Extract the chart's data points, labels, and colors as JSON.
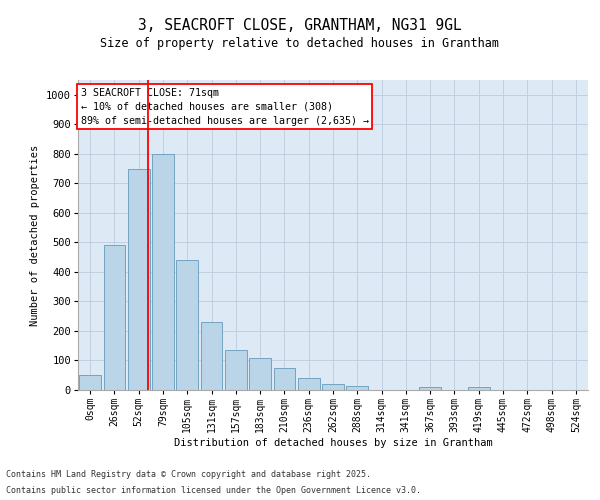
{
  "title_line1": "3, SEACROFT CLOSE, GRANTHAM, NG31 9GL",
  "title_line2": "Size of property relative to detached houses in Grantham",
  "xlabel": "Distribution of detached houses by size in Grantham",
  "ylabel": "Number of detached properties",
  "bar_color": "#bad4e8",
  "bar_edge_color": "#6699bb",
  "background_color": "#ddeaf5",
  "grid_color": "#bbccdd",
  "bin_labels": [
    "0sqm",
    "26sqm",
    "52sqm",
    "79sqm",
    "105sqm",
    "131sqm",
    "157sqm",
    "183sqm",
    "210sqm",
    "236sqm",
    "262sqm",
    "288sqm",
    "314sqm",
    "341sqm",
    "367sqm",
    "393sqm",
    "419sqm",
    "445sqm",
    "472sqm",
    "498sqm",
    "524sqm"
  ],
  "bar_values": [
    50,
    490,
    750,
    800,
    440,
    230,
    135,
    110,
    75,
    40,
    20,
    15,
    0,
    0,
    10,
    0,
    10,
    0,
    0,
    0,
    0
  ],
  "ylim": [
    0,
    1050
  ],
  "yticks": [
    0,
    100,
    200,
    300,
    400,
    500,
    600,
    700,
    800,
    900,
    1000
  ],
  "red_line_bin_index": 2,
  "annotation_text_line1": "3 SEACROFT CLOSE: 71sqm",
  "annotation_text_line2": "← 10% of detached houses are smaller (308)",
  "annotation_text_line3": "89% of semi-detached houses are larger (2,635) →",
  "footer1": "Contains HM Land Registry data © Crown copyright and database right 2025.",
  "footer2": "Contains public sector information licensed under the Open Government Licence v3.0."
}
